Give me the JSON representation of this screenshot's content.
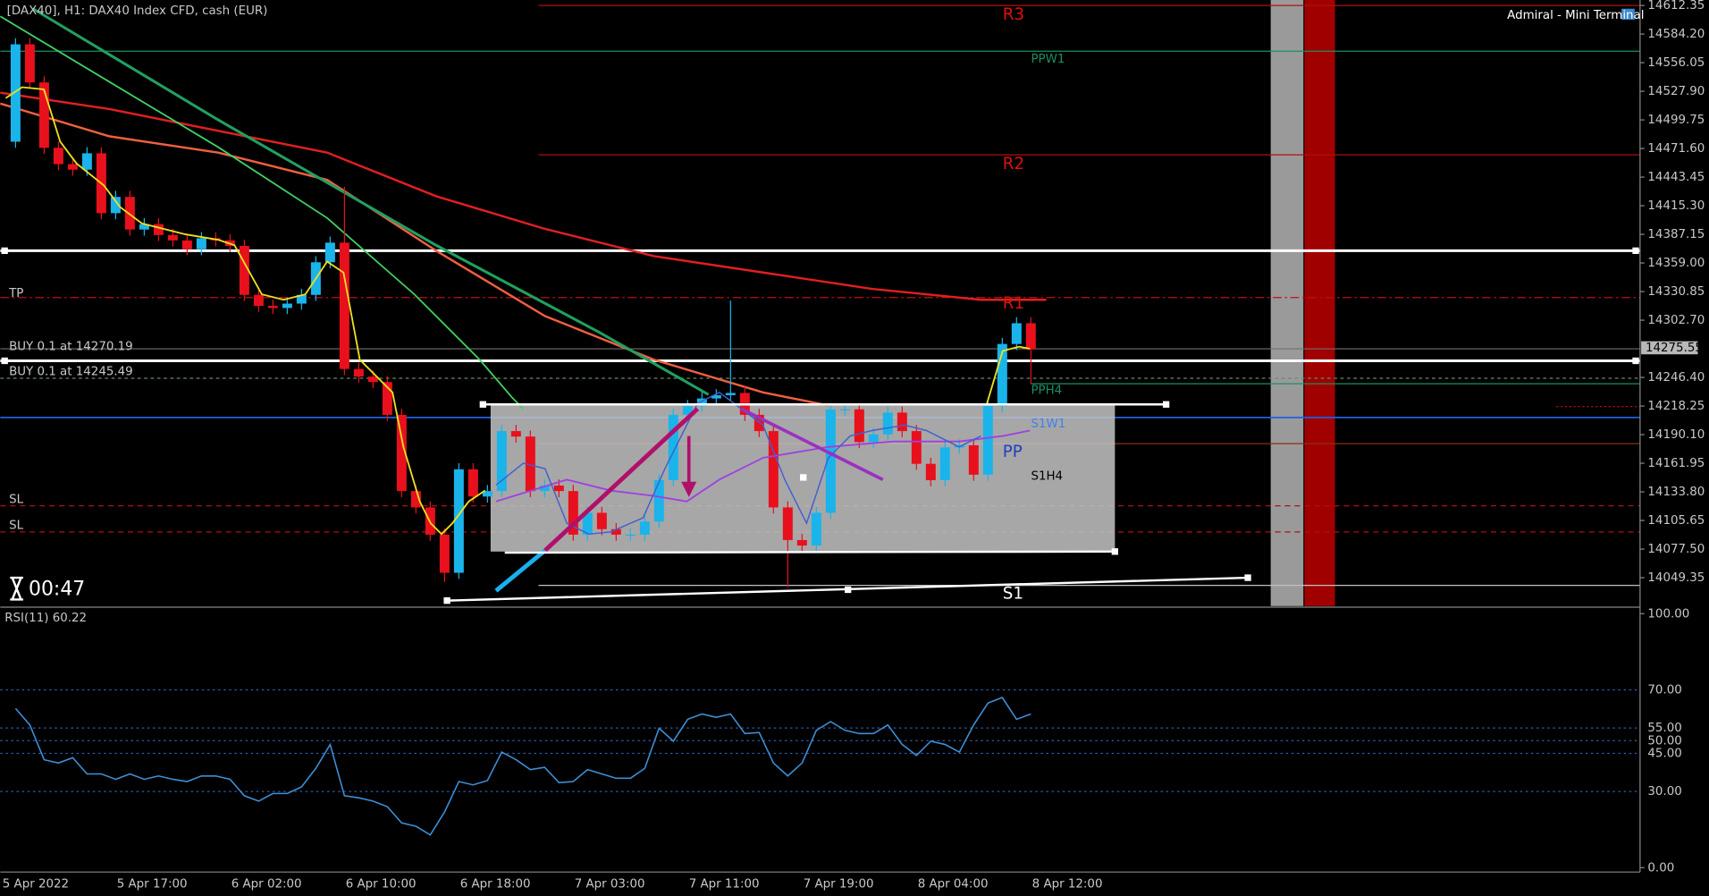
{
  "chart_data": [
    {
      "type": "candlestick",
      "title": "[DAX40], H1:  DAX40 Index CFD, cash (EUR)",
      "up_color": "#1ab4ea",
      "down_color": "#e8101c",
      "ylim": [
        14021.46,
        14617.71
      ],
      "yticks": [
        14612.35,
        {
          "value": 14584.2,
          "label": "14584.20"
        },
        14556.05,
        {
          "value": 14527.9,
          "label": "14527.90"
        },
        14499.75,
        {
          "value": 14471.6,
          "label": "14471.60"
        },
        14443.45,
        {
          "value": 14415.3,
          "label": "14415.30"
        },
        14387.15,
        {
          "value": 14359,
          "label": "14359.00"
        },
        14330.85,
        {
          "value": 14302.7,
          "label": "14302.70"
        },
        {
          "value": 14246.4,
          "label": "14246.40"
        },
        14218.25,
        {
          "value": 14190.1,
          "label": "14190.10"
        },
        14161.95,
        {
          "value": 14133.8,
          "label": "14133.80"
        },
        14105.65,
        {
          "value": 14077.5,
          "label": "14077.50"
        },
        14049.35
      ],
      "current_price": 14275.55,
      "x_axis_labels": [
        "5 Apr 2022",
        "5 Apr 17:00",
        "6 Apr 02:00",
        "6 Apr 10:00",
        "6 Apr 18:00",
        "7 Apr 03:00",
        "7 Apr 11:00",
        "7 Apr 19:00",
        "8 Apr 04:00",
        "8 Apr 12:00"
      ],
      "annotations": {
        "terminal": "Admiral - Mini Terminal",
        "timer": "00:47",
        "tp": "TP",
        "buy1": "BUY 0.1 at 14270.19",
        "buy2": "BUY 0.1 at 14245.49",
        "sl1": "SL",
        "sl2": "SL",
        "r3": "R3",
        "ppw1": "PPW1",
        "r2": "R2",
        "r1": "R1",
        "pph4": "PPH4",
        "s1w1": "S1W1",
        "pp": "PP",
        "s1h4": "S1H4",
        "s1": "S1"
      },
      "open": [
        14478.3,
        14574.1,
        14536.6,
        14472.3,
        14456.2,
        14450.8,
        14466.9,
        14408.0,
        14424.0,
        14391.9,
        14397.2,
        14386.5,
        14381.2,
        14372.6,
        14383.3,
        14381.2,
        14375.8,
        14327.6,
        14316.8,
        14314.7,
        14319.0,
        14327.6,
        14359.7,
        14379.0,
        14254.7,
        14247.2,
        14241.8,
        14209.6,
        14134.6,
        14118.5,
        14091.7,
        14054.2,
        14156.0,
        14129.2,
        14134.6,
        14193.6,
        14188.2,
        14134.6,
        14140.0,
        14134.6,
        14091.7,
        14113.2,
        14097.1,
        14091.7,
        14091.7,
        14104.6,
        14145.3,
        14209.6,
        14218.2,
        14225.7,
        14228.9,
        14231.1,
        14209.6,
        14193.6,
        14118.5,
        14086.4,
        14081.0,
        14113.2,
        14215.0,
        14215.0,
        14182.8,
        14190.3,
        14211.8,
        14193.6,
        14161.4,
        14145.3,
        14177.5,
        14179.6,
        14150.7,
        14218.2,
        14279.3,
        14299.7
      ],
      "high": [
        14580.1,
        14580.1,
        14542.6,
        14478.3,
        14462.2,
        14472.9,
        14472.9,
        14430.0,
        14430.0,
        14403.2,
        14403.2,
        14392.5,
        14387.2,
        14389.3,
        14389.3,
        14387.2,
        14381.8,
        14333.6,
        14322.8,
        14325.0,
        14333.6,
        14365.7,
        14385.0,
        14434.0,
        14260.7,
        14253.2,
        14247.8,
        14215.6,
        14140.6,
        14124.5,
        14097.7,
        14162.0,
        14162.0,
        14140.6,
        14199.6,
        14199.6,
        14194.2,
        14146.0,
        14146.0,
        14140.6,
        14119.2,
        14119.2,
        14103.1,
        14097.7,
        14110.6,
        14151.3,
        14215.6,
        14224.2,
        14231.7,
        14234.9,
        14322.0,
        14237.1,
        14215.6,
        14199.6,
        14124.5,
        14092.4,
        14119.2,
        14221.0,
        14221.0,
        14221.0,
        14196.3,
        14217.8,
        14217.8,
        14199.6,
        14167.4,
        14183.5,
        14185.6,
        14185.6,
        14224.2,
        14285.3,
        14305.7,
        14305.7
      ],
      "low": [
        14472.3,
        14530.6,
        14466.3,
        14450.2,
        14444.8,
        14444.8,
        14402.0,
        14402.0,
        14385.9,
        14385.9,
        14380.5,
        14375.2,
        14366.6,
        14366.6,
        14375.2,
        14369.8,
        14321.6,
        14310.8,
        14308.7,
        14308.7,
        14313.0,
        14321.6,
        14353.7,
        14248.7,
        14241.2,
        14235.8,
        14203.6,
        14128.6,
        14112.5,
        14085.7,
        14045.0,
        14048.2,
        14123.2,
        14123.2,
        14128.6,
        14182.2,
        14128.6,
        14128.6,
        14128.6,
        14085.7,
        14085.7,
        14091.1,
        14085.7,
        14085.7,
        14085.7,
        14098.6,
        14139.3,
        14203.6,
        14212.2,
        14219.7,
        14222.9,
        14203.6,
        14187.6,
        14112.5,
        14040.0,
        14075.0,
        14075.0,
        14107.2,
        14209.0,
        14176.8,
        14176.8,
        14184.3,
        14187.6,
        14155.4,
        14139.3,
        14139.3,
        14171.5,
        14144.7,
        14144.7,
        14212.2,
        14273.3,
        14240.0
      ],
      "close": [
        14574.1,
        14536.6,
        14472.3,
        14456.2,
        14450.8,
        14466.9,
        14408.0,
        14424.0,
        14391.9,
        14397.2,
        14386.5,
        14381.2,
        14372.6,
        14383.3,
        14381.2,
        14375.8,
        14327.6,
        14316.8,
        14314.7,
        14319.0,
        14327.6,
        14359.7,
        14379.0,
        14254.7,
        14247.2,
        14241.8,
        14209.6,
        14134.6,
        14118.5,
        14091.7,
        14054.2,
        14156.0,
        14129.2,
        14134.6,
        14193.6,
        14188.2,
        14134.6,
        14140.0,
        14134.6,
        14091.7,
        14113.2,
        14097.1,
        14091.7,
        14091.7,
        14104.6,
        14145.3,
        14209.6,
        14218.2,
        14225.7,
        14228.9,
        14231.1,
        14209.6,
        14193.6,
        14118.5,
        14086.4,
        14081.0,
        14113.2,
        14215.0,
        14215.0,
        14182.8,
        14190.3,
        14211.8,
        14193.6,
        14161.4,
        14145.3,
        14177.5,
        14179.6,
        14150.7,
        14218.2,
        14279.3,
        14299.7,
        14273.9
      ]
    },
    {
      "type": "line",
      "title": "RSI(11) 60.22",
      "color": "#3d8fd6",
      "ylim": [
        0,
        100
      ],
      "yticks": [
        {
          "value": 100,
          "label": "100.00"
        },
        {
          "value": 70,
          "label": "70.00"
        },
        {
          "value": 55,
          "label": "55.00"
        },
        {
          "value": 50,
          "label": "50.00"
        },
        {
          "value": 45,
          "label": "45.00"
        },
        {
          "value": 30,
          "label": "30.00"
        },
        {
          "value": 0,
          "label": "0.00"
        }
      ],
      "values": [
        62.7,
        56.2,
        42.5,
        41.2,
        43.3,
        36.9,
        36.9,
        34.8,
        36.9,
        34.8,
        36.1,
        34.8,
        33.9,
        36.1,
        36.1,
        34.8,
        28.3,
        26.2,
        29.2,
        29.2,
        31.8,
        39.1,
        48.5,
        28.3,
        27.5,
        26.2,
        24.0,
        17.6,
        16.3,
        12.9,
        21.9,
        33.9,
        32.6,
        34.3,
        45.5,
        42.5,
        38.6,
        39.5,
        33.5,
        33.9,
        38.6,
        36.9,
        35.2,
        35.2,
        39.1,
        54.9,
        49.8,
        58.4,
        60.5,
        59.2,
        60.5,
        52.8,
        53.2,
        41.2,
        36.1,
        41.2,
        54.1,
        57.5,
        54.1,
        52.8,
        52.8,
        56.2,
        48.5,
        44.2,
        49.8,
        48.5,
        45.5,
        56.2,
        64.8,
        67.0,
        58.4,
        60.5
      ]
    }
  ]
}
